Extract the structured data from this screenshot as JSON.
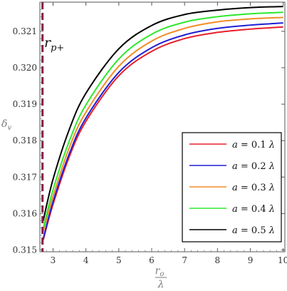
{
  "chart_data": {
    "type": "line",
    "xlabel": {
      "num": "r",
      "num_sub": "o",
      "den": "λ"
    },
    "ylabel": {
      "base": "δ",
      "sub": "v"
    },
    "xlim": [
      2.6,
      10.05
    ],
    "ylim": [
      0.31495,
      0.3218
    ],
    "x_ticks": [
      3,
      4,
      5,
      6,
      7,
      8,
      9,
      10
    ],
    "y_ticks": [
      0.315,
      0.316,
      0.317,
      0.318,
      0.319,
      0.32,
      0.321
    ],
    "y_tick_labels": [
      "0.315",
      "0.316",
      "0.317",
      "0.318",
      "0.319",
      "0.320",
      "0.321"
    ],
    "annotation": {
      "base": "r",
      "sub": "p+",
      "x": 2.68
    },
    "legend_position": "bottom-right",
    "x": [
      2.7,
      3,
      3.5,
      4,
      5,
      6,
      7,
      8,
      9,
      10
    ],
    "series": [
      {
        "name": "a = 0.1 λ",
        "legend_prefix": "a",
        "legend_value": " = 0.1 ",
        "legend_unit": "λ",
        "color": "#e8202a",
        "values": [
          0.31527,
          0.31625,
          0.31757,
          0.31853,
          0.31978,
          0.32045,
          0.3208,
          0.32097,
          0.32106,
          0.32112
        ]
      },
      {
        "name": "a = 0.2 λ",
        "legend_prefix": "a",
        "legend_value": " = 0.2 ",
        "legend_unit": "λ",
        "color": "#1f1fd6",
        "values": [
          0.3153,
          0.31632,
          0.31765,
          0.31862,
          0.31987,
          0.32055,
          0.3209,
          0.32108,
          0.32117,
          0.32123
        ]
      },
      {
        "name": "a = 0.3 λ",
        "legend_prefix": "a",
        "legend_value": " = 0.3 ",
        "legend_unit": "λ",
        "color": "#f28c28",
        "values": [
          0.3155,
          0.31647,
          0.31782,
          0.31878,
          0.32004,
          0.32073,
          0.32108,
          0.32126,
          0.32134,
          0.32138
        ]
      },
      {
        "name": "a = 0.4 λ",
        "legend_prefix": "a",
        "legend_value": " = 0.4 ",
        "legend_unit": "λ",
        "color": "#2ee82e",
        "values": [
          0.31558,
          0.31665,
          0.318,
          0.31898,
          0.32024,
          0.32092,
          0.32125,
          0.3214,
          0.32148,
          0.32152
        ]
      },
      {
        "name": "a = 0.5 λ",
        "legend_prefix": "a",
        "legend_value": " = 0.5 ",
        "legend_unit": "λ",
        "color": "#000000",
        "values": [
          0.3158,
          0.31694,
          0.31832,
          0.3193,
          0.32052,
          0.32116,
          0.32146,
          0.32158,
          0.32165,
          0.32168
        ]
      }
    ]
  },
  "colors": {
    "frame": "#555555",
    "dashed_line": "#8b1a4a"
  }
}
